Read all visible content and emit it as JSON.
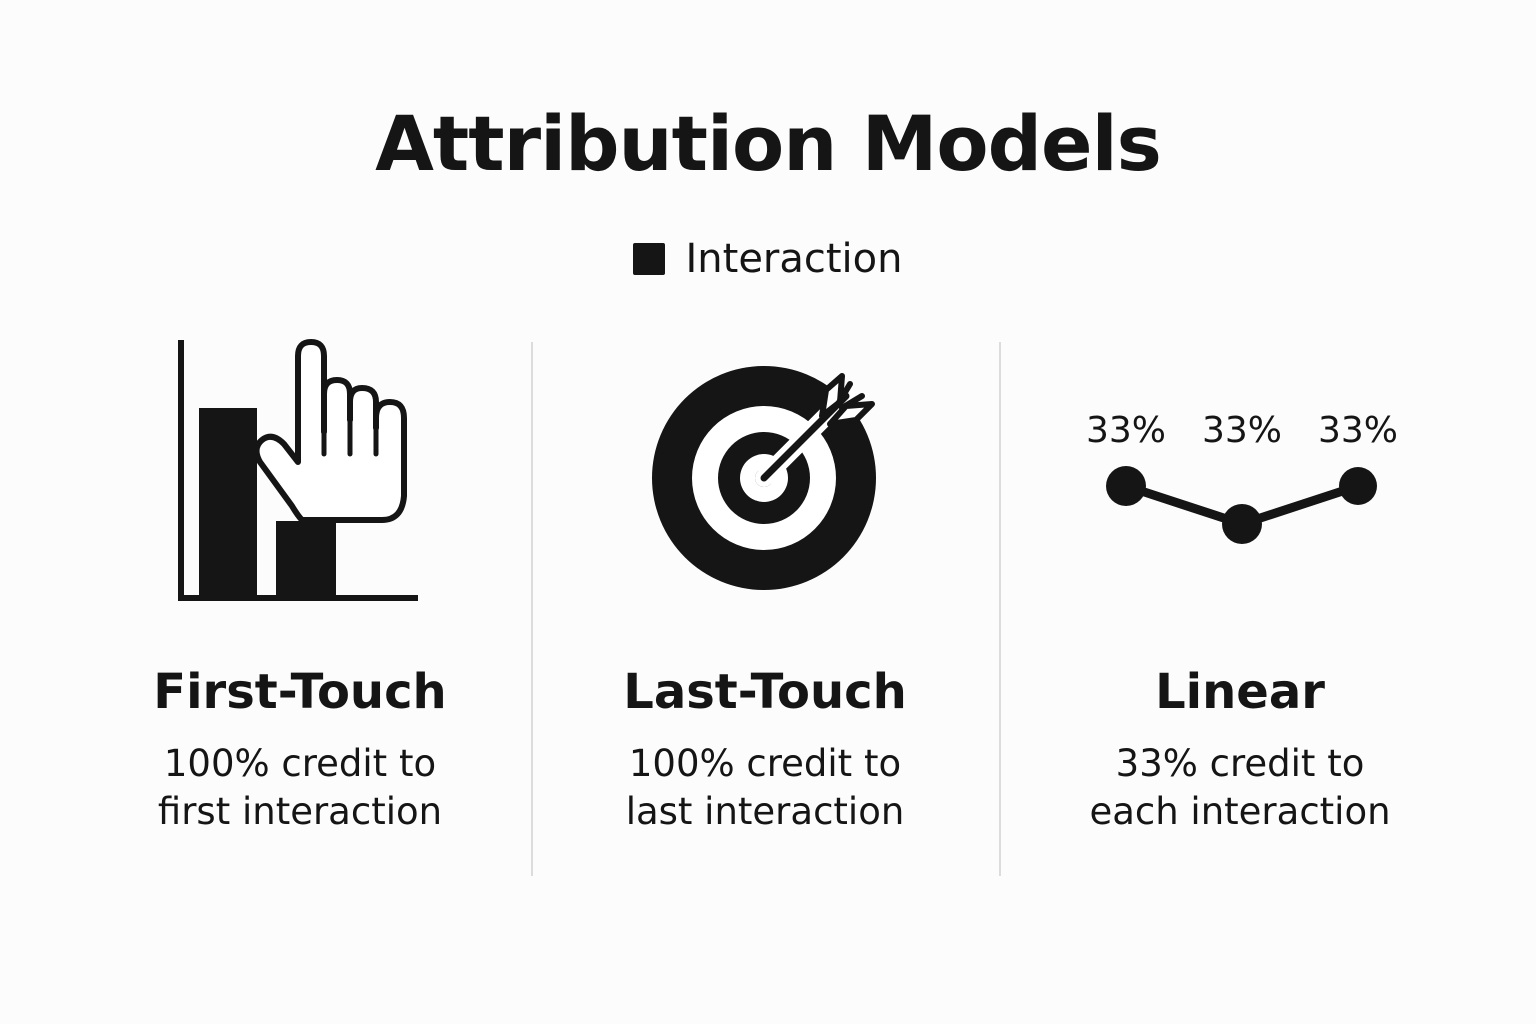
{
  "title": "Attribution Models",
  "legend": {
    "label": "Interaction",
    "swatch_color": "#151515"
  },
  "models": [
    {
      "name": "First-Touch",
      "description_lines": [
        "100% credit to",
        "first interaction"
      ],
      "icon": "bar-chart-pointer-hand-icon"
    },
    {
      "name": "Last-Touch",
      "description_lines": [
        "100% credit to",
        "last interaction"
      ],
      "icon": "target-arrow-icon"
    },
    {
      "name": "Linear",
      "description_lines": [
        "33% credit to",
        "each interaction"
      ],
      "icon": "linear-path-icon",
      "point_labels": [
        "33%",
        "33%",
        "33%"
      ]
    }
  ],
  "colors": {
    "ink": "#151515",
    "background": "#fcfcfc",
    "divider": "#dcdcdc"
  }
}
